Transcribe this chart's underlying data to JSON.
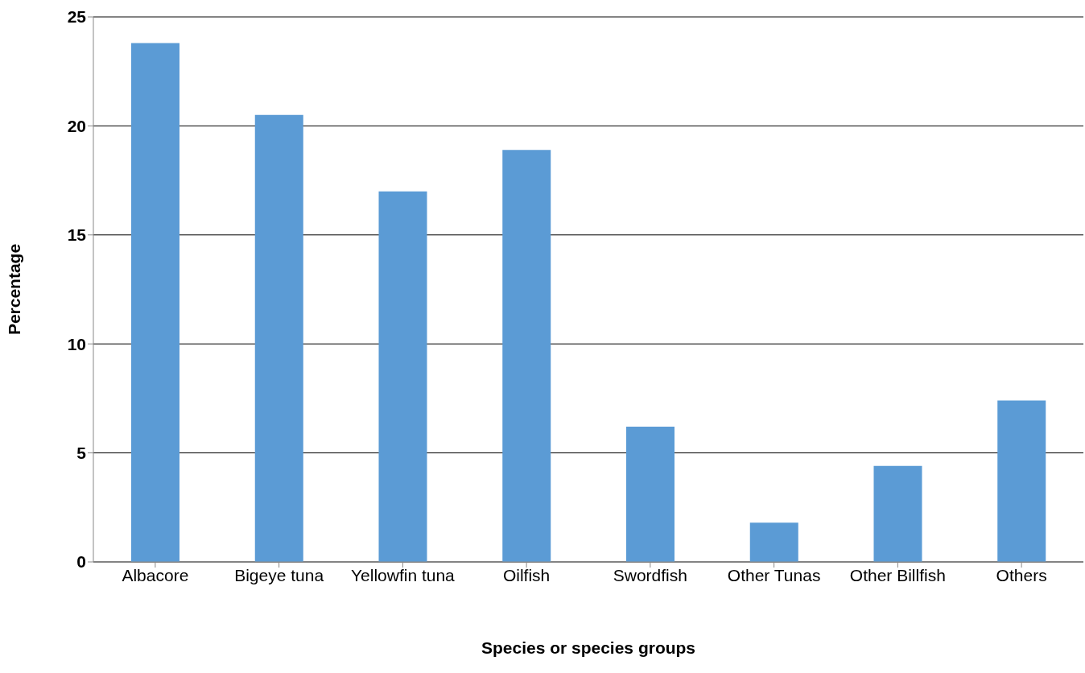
{
  "chart_data": {
    "type": "bar",
    "xlabel": "Species or species groups",
    "ylabel": "Percentage",
    "categories": [
      "Albacore",
      "Bigeye tuna",
      "Yellowfin tuna",
      "Oilfish",
      "Swordfish",
      "Other Tunas",
      "Other Billfish",
      "Others"
    ],
    "values": [
      23.8,
      20.5,
      17.0,
      18.9,
      6.2,
      1.8,
      4.4,
      7.4
    ],
    "color": "#5b9bd5",
    "ylim": [
      0,
      25
    ],
    "yticks": [
      0,
      5,
      10,
      15,
      20,
      25
    ],
    "grid": "y",
    "legend": false
  }
}
